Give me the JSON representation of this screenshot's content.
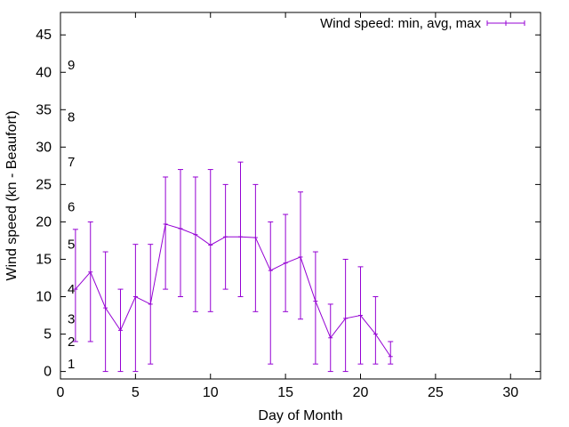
{
  "chart_data": {
    "type": "line",
    "xlabel": "Day of Month",
    "ylabel": "Wind speed (kn - Beaufort)",
    "xlim": [
      0,
      32
    ],
    "ylim": [
      -1,
      48
    ],
    "xticks": [
      0,
      5,
      10,
      15,
      20,
      25,
      30
    ],
    "yticks": [
      0,
      5,
      10,
      15,
      20,
      25,
      30,
      35,
      40,
      45
    ],
    "grid": false,
    "legend_position": "top-right",
    "color": "#9400d3",
    "series": [
      {
        "name": "Wind speed: min, avg, max",
        "x": [
          1,
          2,
          3,
          4,
          5,
          6,
          7,
          8,
          9,
          10,
          11,
          12,
          13,
          14,
          15,
          16,
          17,
          18,
          19,
          20,
          21,
          22
        ],
        "avg": [
          11.0,
          13.3,
          8.5,
          5.5,
          10.0,
          9.0,
          19.7,
          19.1,
          18.3,
          16.9,
          18.0,
          18.0,
          17.9,
          13.5,
          14.5,
          15.3,
          9.4,
          4.5,
          7.1,
          7.5,
          5.0,
          2.0
        ],
        "min": [
          4,
          4,
          0,
          0,
          0,
          1,
          11,
          10,
          8,
          8,
          11,
          10,
          8,
          1,
          8,
          7,
          1,
          0,
          0,
          1,
          1,
          1
        ],
        "max": [
          19,
          20,
          16,
          11,
          17,
          17,
          26,
          27,
          26,
          27,
          25,
          28,
          25,
          20,
          21,
          24,
          16,
          9,
          15,
          14,
          10,
          4
        ]
      }
    ],
    "annotations": [
      {
        "text": "1",
        "y": 1
      },
      {
        "text": "2",
        "y": 4
      },
      {
        "text": "3",
        "y": 7
      },
      {
        "text": "4",
        "y": 11
      },
      {
        "text": "5",
        "y": 17
      },
      {
        "text": "6",
        "y": 22
      },
      {
        "text": "7",
        "y": 28
      },
      {
        "text": "8",
        "y": 34
      },
      {
        "text": "9",
        "y": 41
      }
    ]
  }
}
